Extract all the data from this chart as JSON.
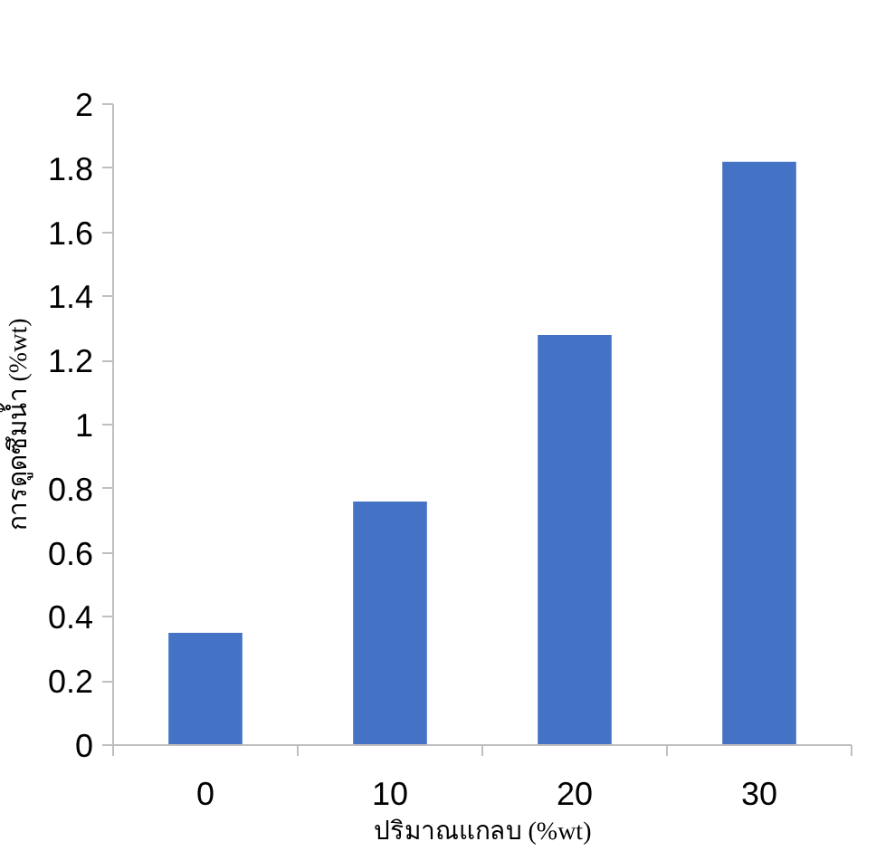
{
  "chart_data": {
    "type": "bar",
    "xlabel": "ปริมาณแกลบ (%wt)",
    "ylabel": "การดูดซึมน้ำ (%wt)",
    "categories": [
      "0",
      "10",
      "20",
      "30"
    ],
    "series": [
      {
        "color": "#4472c4",
        "values": [
          0.35,
          0.76,
          1.28,
          1.82
        ]
      }
    ],
    "ylim": [
      0,
      2
    ],
    "yticks": [
      0,
      {
        "value": 0.2,
        "label": "0.2"
      },
      {
        "value": 0.4,
        "label": "0.4"
      },
      {
        "value": 0.6,
        "label": "0.6"
      },
      {
        "value": 0.8,
        "label": "0.8"
      },
      1,
      {
        "value": 1.2,
        "label": "1.2"
      },
      {
        "value": 1.4,
        "label": "1.4"
      },
      {
        "value": 1.6,
        "label": "1.6"
      },
      {
        "value": 1.8,
        "label": "1.8"
      },
      2
    ],
    "grid": false
  }
}
